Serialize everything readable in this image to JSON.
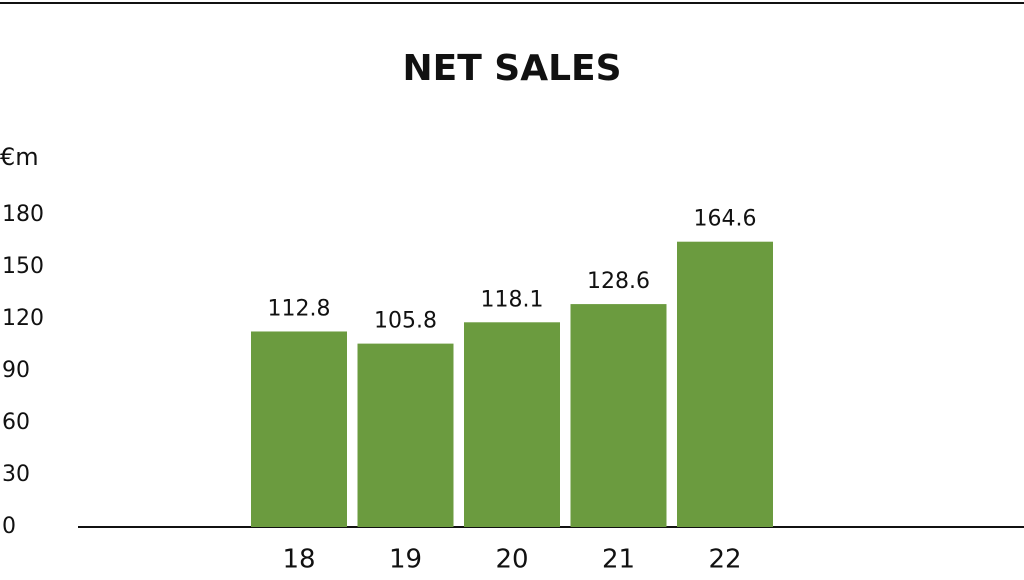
{
  "chart_data": {
    "type": "bar",
    "title": "NET SALES",
    "y_label": "€m",
    "categories": [
      "18",
      "19",
      "20",
      "21",
      "22"
    ],
    "values": [
      112.8,
      105.8,
      118.1,
      128.6,
      164.6
    ],
    "color": "#6b9b3f",
    "ylim": [
      0,
      180
    ],
    "yticks": [
      0,
      30,
      60,
      90,
      120,
      150,
      180
    ],
    "grid": false,
    "data_labels": true
  }
}
